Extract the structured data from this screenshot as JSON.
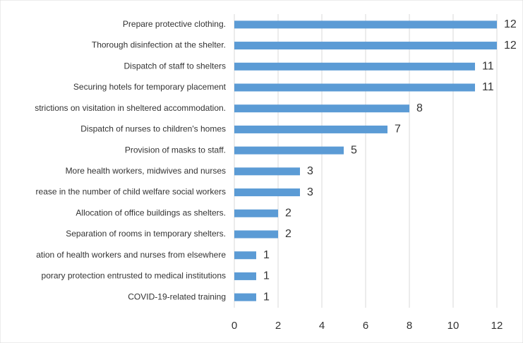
{
  "chart_data": {
    "type": "bar",
    "orientation": "horizontal",
    "categories": [
      "Prepare protective clothing.",
      "Thorough disinfection at the shelter.",
      "Dispatch of staff to shelters",
      "Securing hotels for temporary placement",
      "strictions on visitation in sheltered accommodation.",
      "Dispatch of nurses to children's homes",
      "Provision of masks to staff.",
      "More health workers, midwives and nurses",
      "rease in the number of child welfare social workers",
      "Allocation of office buildings as shelters.",
      "Separation of rooms in temporary shelters.",
      "ation of health workers and nurses from elsewhere",
      "porary protection entrusted to medical institutions",
      "COVID-19-related training"
    ],
    "values": [
      12,
      12,
      11,
      11,
      8,
      7,
      5,
      3,
      3,
      2,
      2,
      1,
      1,
      1
    ],
    "color": "#5b9bd5",
    "xlim": [
      0,
      12
    ],
    "xticks": [
      0,
      2,
      4,
      6,
      8,
      10,
      12
    ],
    "grid": true
  }
}
